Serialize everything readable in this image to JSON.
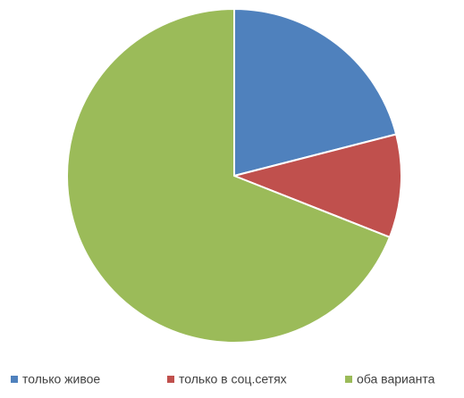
{
  "chart_data": {
    "type": "pie",
    "categories": [
      "только живое",
      "только в соц.сетях",
      "оба варианта"
    ],
    "values": [
      21,
      10,
      69
    ],
    "colors": [
      "#4f81bd",
      "#c0504d",
      "#9bbb59"
    ],
    "legend": "bottom"
  }
}
